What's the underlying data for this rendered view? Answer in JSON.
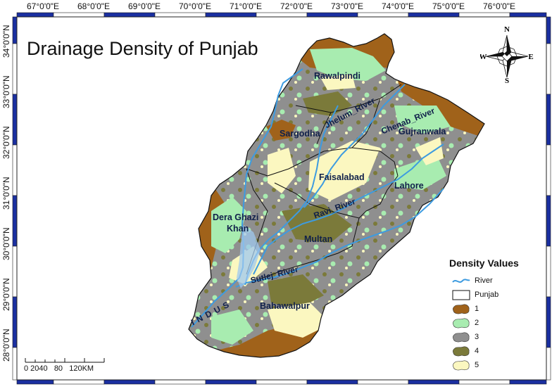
{
  "title": "Drainage Density of Punjab",
  "axes": {
    "top_ticks": [
      "67°0'0\"E",
      "68°0'0\"E",
      "69°0'0\"E",
      "70°0'0\"E",
      "71°0'0\"E",
      "72°0'0\"E",
      "73°0'0\"E",
      "74°0'0\"E",
      "75°0'0\"E",
      "76°0'0\"E"
    ],
    "left_ticks": [
      "34°0'0\"N",
      "33°0'0\"N",
      "32°0'0\"N",
      "31°0'0\"N",
      "30°0'0\"N",
      "29°0'0\"N",
      "28°0'0\"N"
    ]
  },
  "divisions": {
    "rawalpindi": "Rawalpindi",
    "sargodha": "Sargodha",
    "gujranwala": "Gujranwala",
    "faisalabad": "Faisalabad",
    "lahore": "Lahore",
    "dera_ghazi": "Dera Ghazi",
    "khan": "Khan",
    "multan": "Multan",
    "bahawalpur": "Bahawalpur"
  },
  "rivers": {
    "jhelum": "Jhelum_River",
    "chenab": "Chenab_River",
    "ravi": "Ravi_River",
    "sutlej": "Sutlej_River",
    "indus": "I N D U S"
  },
  "compass": {
    "n": "N",
    "s": "S",
    "e": "E",
    "w": "W"
  },
  "legend": {
    "title": "Density Values",
    "river": "River",
    "punjab": "Punjab",
    "classes": [
      {
        "label": "1",
        "color": "#a0621a"
      },
      {
        "label": "2",
        "color": "#a8ecb0"
      },
      {
        "label": "3",
        "color": "#8f8f8f"
      },
      {
        "label": "4",
        "color": "#7b7a3a"
      },
      {
        "label": "5",
        "color": "#fbf7c0"
      }
    ],
    "river_color": "#3d9be0"
  },
  "scale": {
    "labels": "0 2040   80   120KM"
  },
  "frame_color": "#1a2fa0"
}
